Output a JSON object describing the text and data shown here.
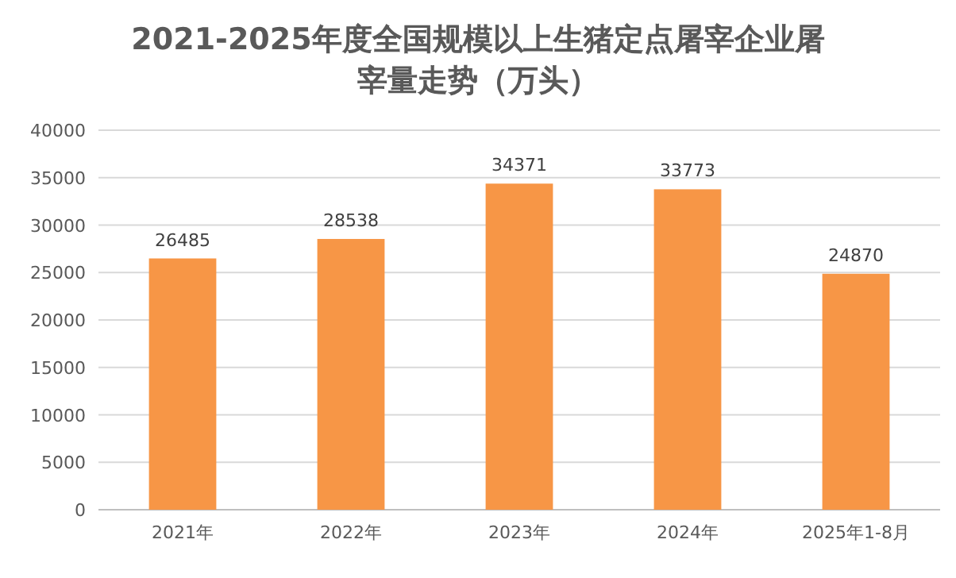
{
  "chart_data": {
    "type": "bar",
    "title": "2021-2025年度全国规模以上生猪定点屠宰企业屠宰量走势（万头）",
    "categories": [
      "2021年",
      "2022年",
      "2023年",
      "2024年",
      "2025年1-8月"
    ],
    "values": [
      26485,
      28538,
      34371,
      33773,
      24870
    ],
    "color": "#f79646",
    "ylim": [
      0,
      40000
    ],
    "yticks": [
      0,
      5000,
      10000,
      15000,
      20000,
      25000,
      30000,
      35000,
      40000
    ],
    "grid": "y",
    "data_labels": true
  }
}
